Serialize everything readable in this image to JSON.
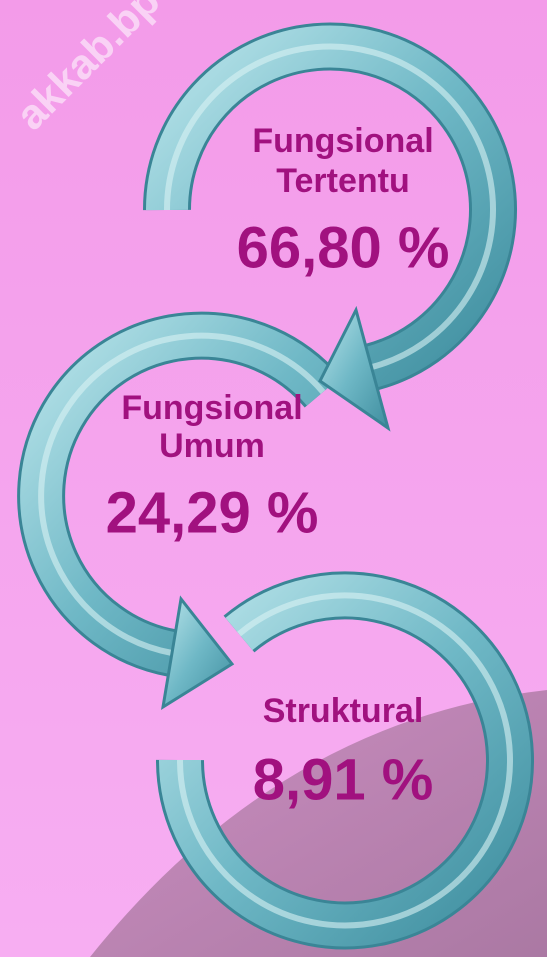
{
  "watermark": "akkab.bp",
  "items": [
    {
      "label_lines": [
        "Fungsional",
        "Tertentu"
      ],
      "percent": "66,80 %"
    },
    {
      "label_lines": [
        "Fungsional",
        "Umum"
      ],
      "percent": "24,29 %"
    },
    {
      "label_lines": [
        "Struktural"
      ],
      "percent": "8,91 %"
    }
  ]
}
